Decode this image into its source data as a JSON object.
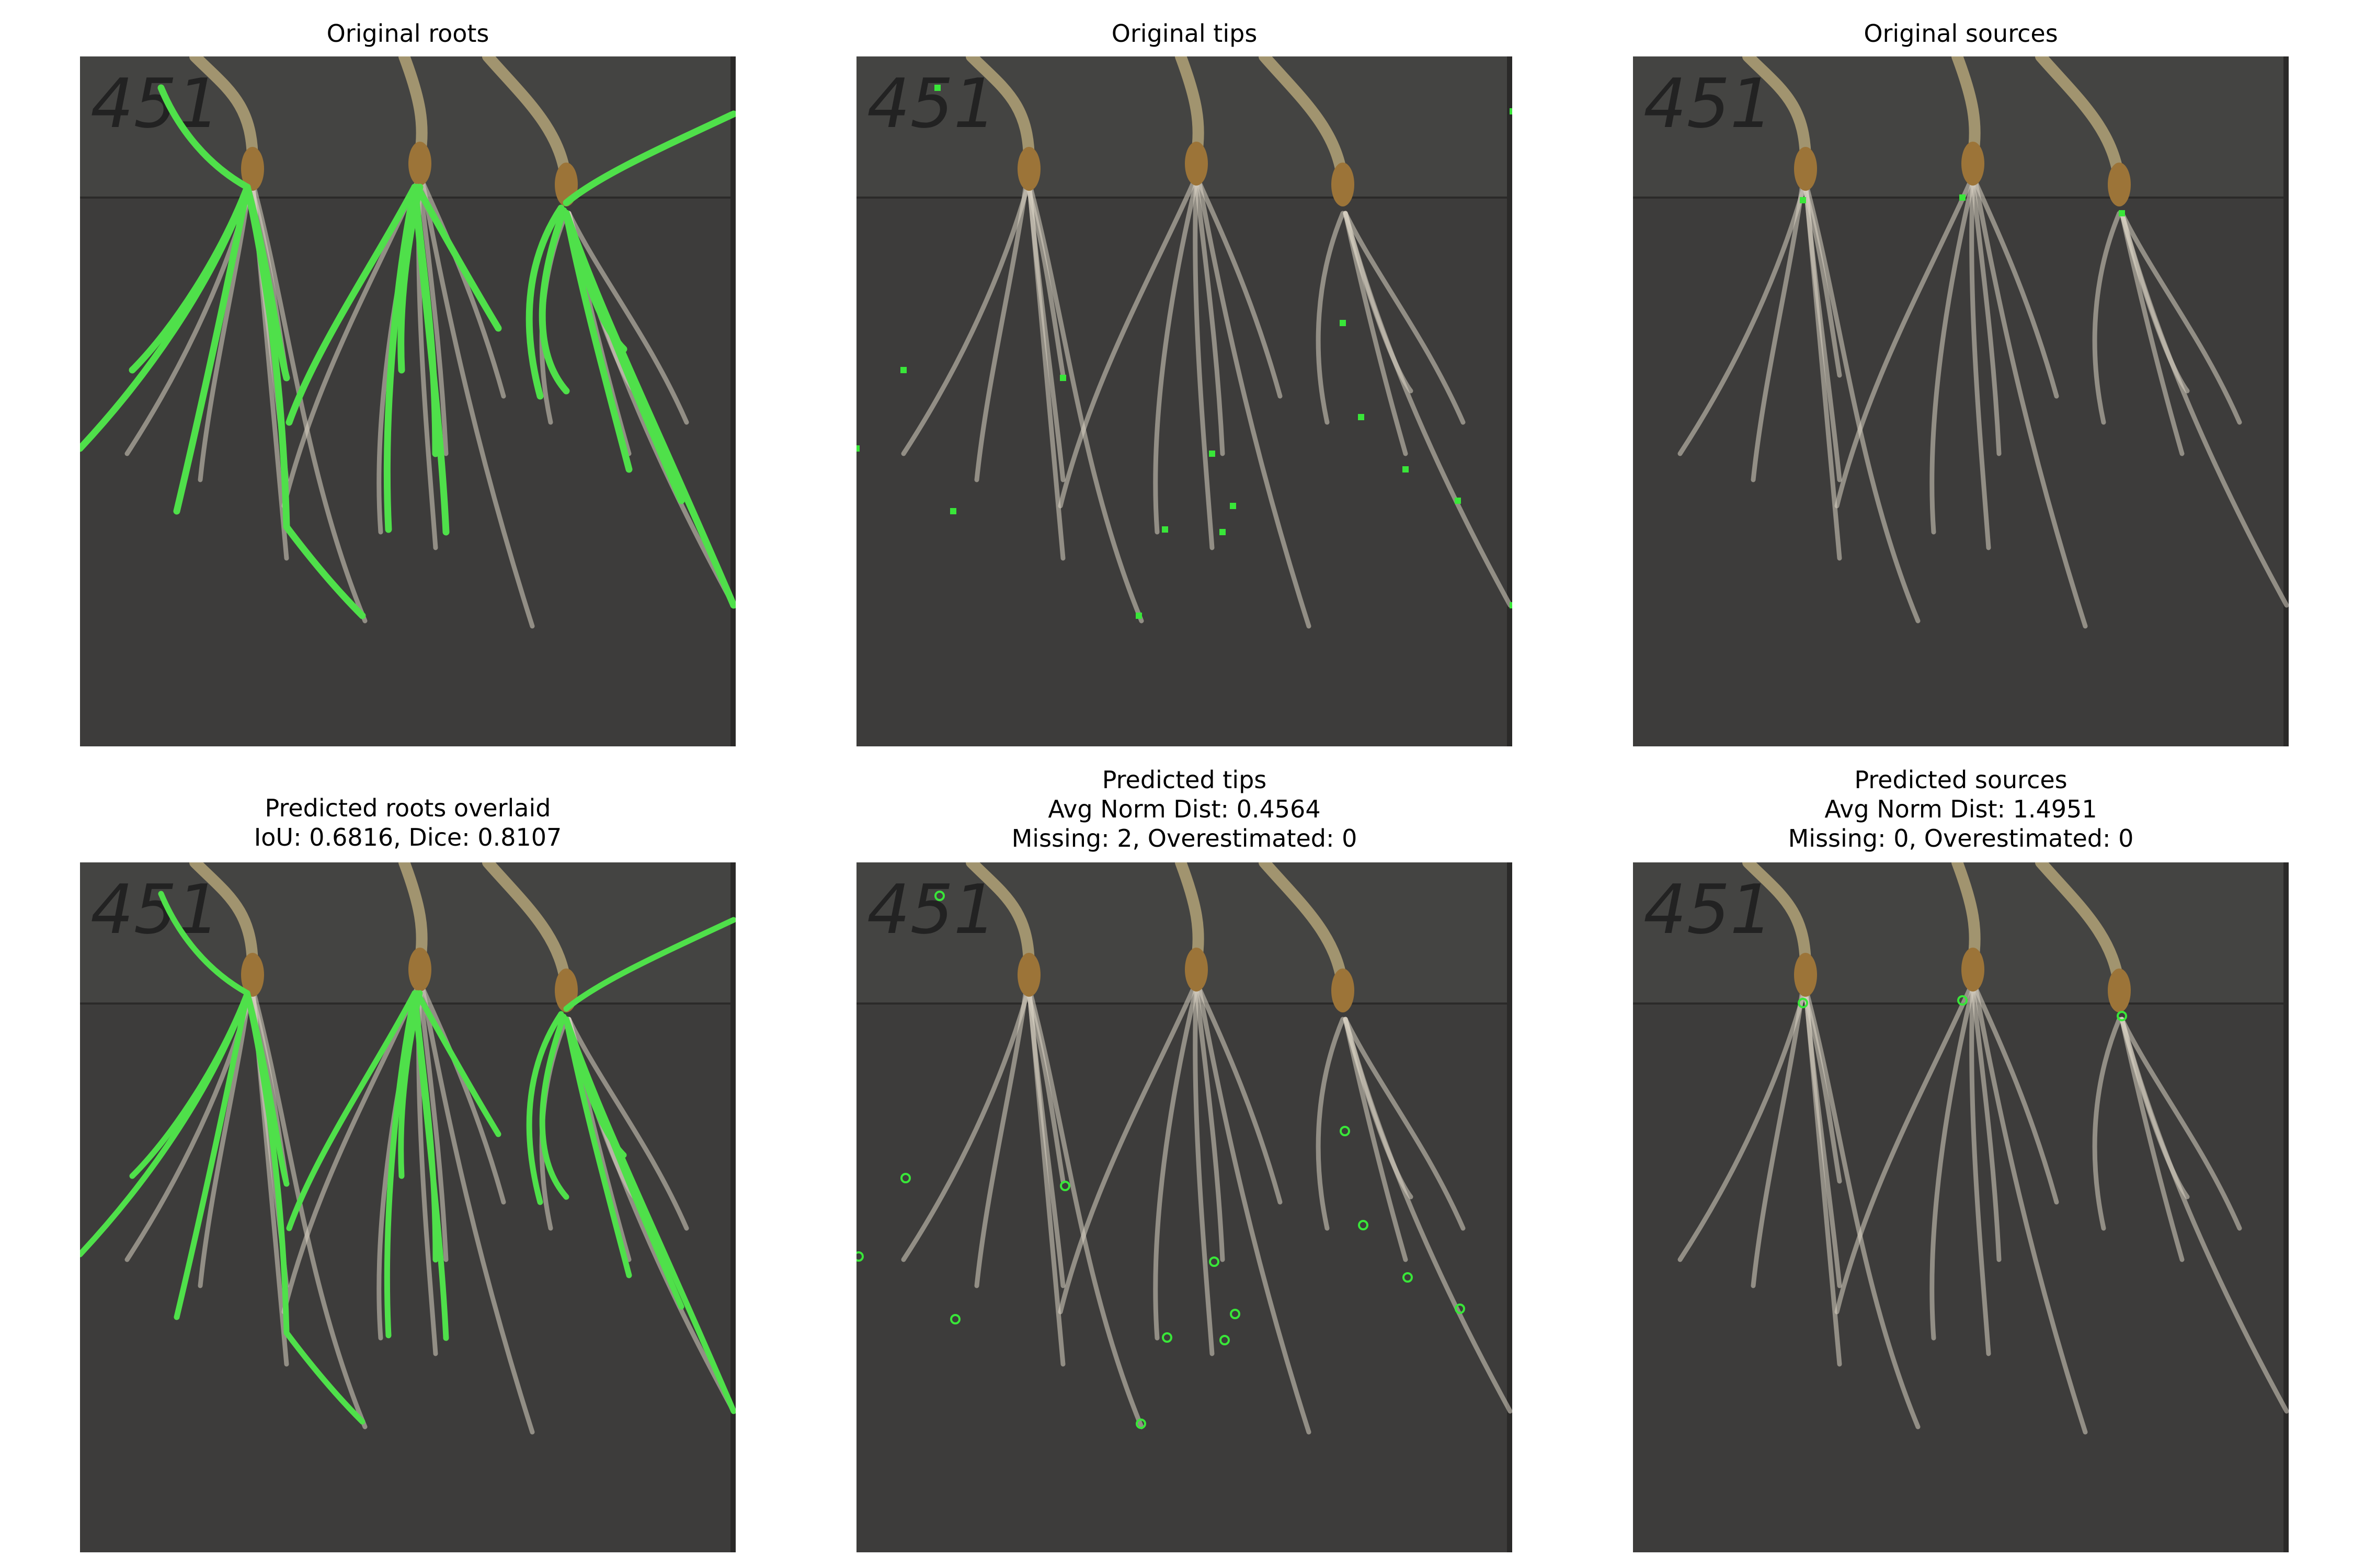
{
  "panels": [
    {
      "id": "p1",
      "title_lines": [
        "Original roots"
      ],
      "overlay": "roots-mask"
    },
    {
      "id": "p2",
      "title_lines": [
        "Original tips"
      ],
      "overlay": "tip-squares"
    },
    {
      "id": "p3",
      "title_lines": [
        "Original sources"
      ],
      "overlay": "source-squares"
    },
    {
      "id": "p4",
      "title_lines": [
        "Predicted roots overlaid",
        "IoU: 0.6816, Dice: 0.8107"
      ],
      "overlay": "roots-mask-predicted",
      "metrics": {
        "iou": 0.6816,
        "dice": 0.8107
      }
    },
    {
      "id": "p5",
      "title_lines": [
        "Predicted tips",
        "Avg Norm Dist: 0.4564",
        "Missing: 2, Overestimated: 0"
      ],
      "overlay": "tip-circles",
      "metrics": {
        "avg_norm_dist": 0.4564,
        "missing": 2,
        "overestimated": 0
      }
    },
    {
      "id": "p6",
      "title_lines": [
        "Predicted sources",
        "Avg Norm Dist: 1.4951",
        "Missing: 0, Overestimated: 0"
      ],
      "overlay": "source-circles",
      "metrics": {
        "avg_norm_dist": 1.4951,
        "missing": 0,
        "overestimated": 0
      }
    }
  ],
  "plate_label": "451",
  "colors": {
    "mask": "#4fe04a",
    "marker": "#39e639",
    "background": "#3d3c3b",
    "root": "#d8d2c2"
  }
}
